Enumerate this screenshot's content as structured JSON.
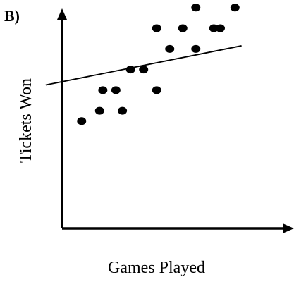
{
  "panel_label": "B)",
  "chart_data": {
    "type": "scatter",
    "xlabel": "Games Played",
    "ylabel": "Tickets Won",
    "xlim": [
      0,
      14
    ],
    "ylim": [
      0,
      11
    ],
    "grid": false,
    "legend": "none",
    "ticks_shown": false,
    "colors": {
      "points": "#000000",
      "axes": "#000000",
      "trend_line": "#000000",
      "background": "#ffffff"
    },
    "points": [
      {
        "x": 1.2,
        "y": 5.2
      },
      {
        "x": 2.3,
        "y": 5.7
      },
      {
        "x": 2.5,
        "y": 6.7
      },
      {
        "x": 3.3,
        "y": 6.7
      },
      {
        "x": 3.7,
        "y": 5.7
      },
      {
        "x": 4.2,
        "y": 7.7
      },
      {
        "x": 5.0,
        "y": 7.7
      },
      {
        "x": 5.8,
        "y": 6.7
      },
      {
        "x": 5.8,
        "y": 9.7
      },
      {
        "x": 6.6,
        "y": 8.7
      },
      {
        "x": 7.4,
        "y": 9.7
      },
      {
        "x": 8.2,
        "y": 8.7
      },
      {
        "x": 8.2,
        "y": 10.7
      },
      {
        "x": 9.3,
        "y": 9.7
      },
      {
        "x": 9.7,
        "y": 9.7
      },
      {
        "x": 10.6,
        "y": 10.7
      }
    ],
    "trend_line": {
      "x1": -1.0,
      "y1": 6.95,
      "x2": 11.0,
      "y2": 8.85
    }
  }
}
